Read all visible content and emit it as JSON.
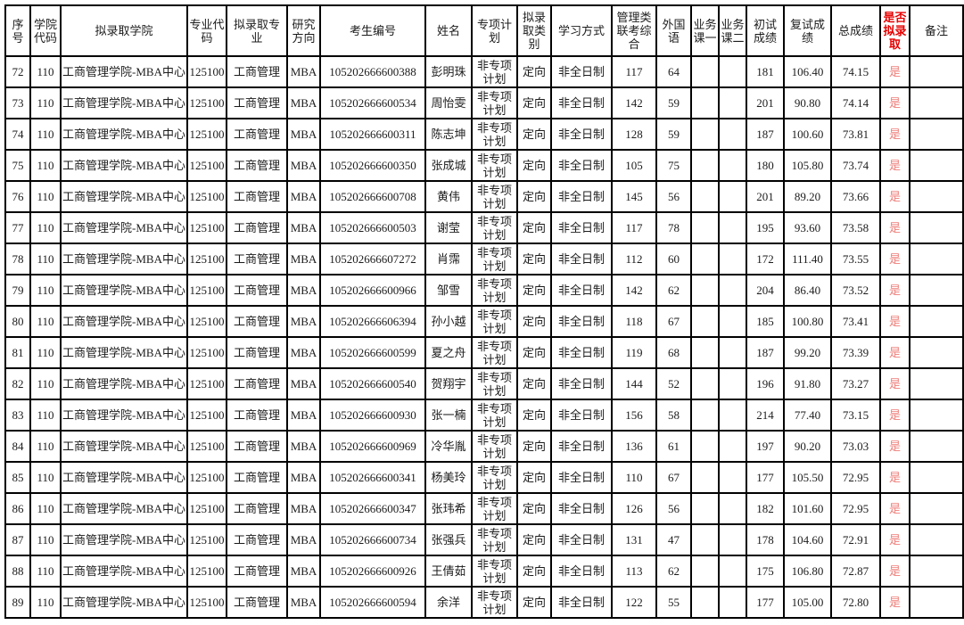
{
  "colors": {
    "flag_header_red": "#e60000",
    "flag_value_red": "#ee7d78",
    "grid_line": "#000000",
    "text": "#1c1c1c",
    "background": "#ffffff"
  },
  "table": {
    "columns": [
      {
        "key": "xuhao",
        "label": "序号"
      },
      {
        "key": "xueyuan-daima",
        "label": "学院代码"
      },
      {
        "key": "nlq-xueyuan",
        "label": "拟录取学院"
      },
      {
        "key": "zhuanye-daima",
        "label": "专业代码"
      },
      {
        "key": "nlq-zhuanye",
        "label": "拟录取专业"
      },
      {
        "key": "yanjiu-fangxiang",
        "label": "研究方向"
      },
      {
        "key": "kaosheng-bianhao",
        "label": "考生编号"
      },
      {
        "key": "xingming",
        "label": "姓名"
      },
      {
        "key": "zhuanxiang-jihua",
        "label": "专项计划"
      },
      {
        "key": "nlq-leibie",
        "label": "拟录取类别"
      },
      {
        "key": "xuexi-fangshi",
        "label": "学习方式"
      },
      {
        "key": "guanlilei-liankao",
        "label": "管理类联考综合"
      },
      {
        "key": "waiguoyu",
        "label": "外国语"
      },
      {
        "key": "yewuke-yi",
        "label": "业务课一"
      },
      {
        "key": "yewuke-er",
        "label": "业务课二"
      },
      {
        "key": "chushi-chengji",
        "label": "初试成绩"
      },
      {
        "key": "fushi-chengji",
        "label": "复试成绩"
      },
      {
        "key": "zong-chengji",
        "label": "总成绩"
      },
      {
        "key": "shifou-nlq",
        "label": "是否拟录取",
        "accent": true
      },
      {
        "key": "beizhu",
        "label": "备注"
      }
    ],
    "rows": [
      [
        "72",
        "110",
        "工商管理学院-MBA中心",
        "125100",
        "工商管理",
        "MBA",
        "105202666600388",
        "彭明珠",
        "非专项计划",
        "定向",
        "非全日制",
        "117",
        "64",
        "",
        "",
        "181",
        "106.40",
        "74.15",
        "是",
        ""
      ],
      [
        "73",
        "110",
        "工商管理学院-MBA中心",
        "125100",
        "工商管理",
        "MBA",
        "105202666600534",
        "周怡雯",
        "非专项计划",
        "定向",
        "非全日制",
        "142",
        "59",
        "",
        "",
        "201",
        "90.80",
        "74.14",
        "是",
        ""
      ],
      [
        "74",
        "110",
        "工商管理学院-MBA中心",
        "125100",
        "工商管理",
        "MBA",
        "105202666600311",
        "陈志坤",
        "非专项计划",
        "定向",
        "非全日制",
        "128",
        "59",
        "",
        "",
        "187",
        "100.60",
        "73.81",
        "是",
        ""
      ],
      [
        "75",
        "110",
        "工商管理学院-MBA中心",
        "125100",
        "工商管理",
        "MBA",
        "105202666600350",
        "张成城",
        "非专项计划",
        "定向",
        "非全日制",
        "105",
        "75",
        "",
        "",
        "180",
        "105.80",
        "73.74",
        "是",
        ""
      ],
      [
        "76",
        "110",
        "工商管理学院-MBA中心",
        "125100",
        "工商管理",
        "MBA",
        "105202666600708",
        "黄伟",
        "非专项计划",
        "定向",
        "非全日制",
        "145",
        "56",
        "",
        "",
        "201",
        "89.20",
        "73.66",
        "是",
        ""
      ],
      [
        "77",
        "110",
        "工商管理学院-MBA中心",
        "125100",
        "工商管理",
        "MBA",
        "105202666600503",
        "谢莹",
        "非专项计划",
        "定向",
        "非全日制",
        "117",
        "78",
        "",
        "",
        "195",
        "93.60",
        "73.58",
        "是",
        ""
      ],
      [
        "78",
        "110",
        "工商管理学院-MBA中心",
        "125100",
        "工商管理",
        "MBA",
        "105202666607272",
        "肖霈",
        "非专项计划",
        "定向",
        "非全日制",
        "112",
        "60",
        "",
        "",
        "172",
        "111.40",
        "73.55",
        "是",
        ""
      ],
      [
        "79",
        "110",
        "工商管理学院-MBA中心",
        "125100",
        "工商管理",
        "MBA",
        "105202666600966",
        "邹雪",
        "非专项计划",
        "定向",
        "非全日制",
        "142",
        "62",
        "",
        "",
        "204",
        "86.40",
        "73.52",
        "是",
        ""
      ],
      [
        "80",
        "110",
        "工商管理学院-MBA中心",
        "125100",
        "工商管理",
        "MBA",
        "105202666606394",
        "孙小越",
        "非专项计划",
        "定向",
        "非全日制",
        "118",
        "67",
        "",
        "",
        "185",
        "100.80",
        "73.41",
        "是",
        ""
      ],
      [
        "81",
        "110",
        "工商管理学院-MBA中心",
        "125100",
        "工商管理",
        "MBA",
        "105202666600599",
        "夏之舟",
        "非专项计划",
        "定向",
        "非全日制",
        "119",
        "68",
        "",
        "",
        "187",
        "99.20",
        "73.39",
        "是",
        ""
      ],
      [
        "82",
        "110",
        "工商管理学院-MBA中心",
        "125100",
        "工商管理",
        "MBA",
        "105202666600540",
        "贺翔宇",
        "非专项计划",
        "定向",
        "非全日制",
        "144",
        "52",
        "",
        "",
        "196",
        "91.80",
        "73.27",
        "是",
        ""
      ],
      [
        "83",
        "110",
        "工商管理学院-MBA中心",
        "125100",
        "工商管理",
        "MBA",
        "105202666600930",
        "张一楠",
        "非专项计划",
        "定向",
        "非全日制",
        "156",
        "58",
        "",
        "",
        "214",
        "77.40",
        "73.15",
        "是",
        ""
      ],
      [
        "84",
        "110",
        "工商管理学院-MBA中心",
        "125100",
        "工商管理",
        "MBA",
        "105202666600969",
        "冷华胤",
        "非专项计划",
        "定向",
        "非全日制",
        "136",
        "61",
        "",
        "",
        "197",
        "90.20",
        "73.03",
        "是",
        ""
      ],
      [
        "85",
        "110",
        "工商管理学院-MBA中心",
        "125100",
        "工商管理",
        "MBA",
        "105202666600341",
        "杨美玲",
        "非专项计划",
        "定向",
        "非全日制",
        "110",
        "67",
        "",
        "",
        "177",
        "105.50",
        "72.95",
        "是",
        ""
      ],
      [
        "86",
        "110",
        "工商管理学院-MBA中心",
        "125100",
        "工商管理",
        "MBA",
        "105202666600347",
        "张玮希",
        "非专项计划",
        "定向",
        "非全日制",
        "126",
        "56",
        "",
        "",
        "182",
        "101.60",
        "72.95",
        "是",
        ""
      ],
      [
        "87",
        "110",
        "工商管理学院-MBA中心",
        "125100",
        "工商管理",
        "MBA",
        "105202666600734",
        "张强兵",
        "非专项计划",
        "定向",
        "非全日制",
        "131",
        "47",
        "",
        "",
        "178",
        "104.60",
        "72.91",
        "是",
        ""
      ],
      [
        "88",
        "110",
        "工商管理学院-MBA中心",
        "125100",
        "工商管理",
        "MBA",
        "105202666600926",
        "王倩茹",
        "非专项计划",
        "定向",
        "非全日制",
        "113",
        "62",
        "",
        "",
        "175",
        "106.80",
        "72.87",
        "是",
        ""
      ],
      [
        "89",
        "110",
        "工商管理学院-MBA中心",
        "125100",
        "工商管理",
        "MBA",
        "105202666600594",
        "余洋",
        "非专项计划",
        "定向",
        "非全日制",
        "122",
        "55",
        "",
        "",
        "177",
        "105.00",
        "72.80",
        "是",
        ""
      ]
    ]
  }
}
